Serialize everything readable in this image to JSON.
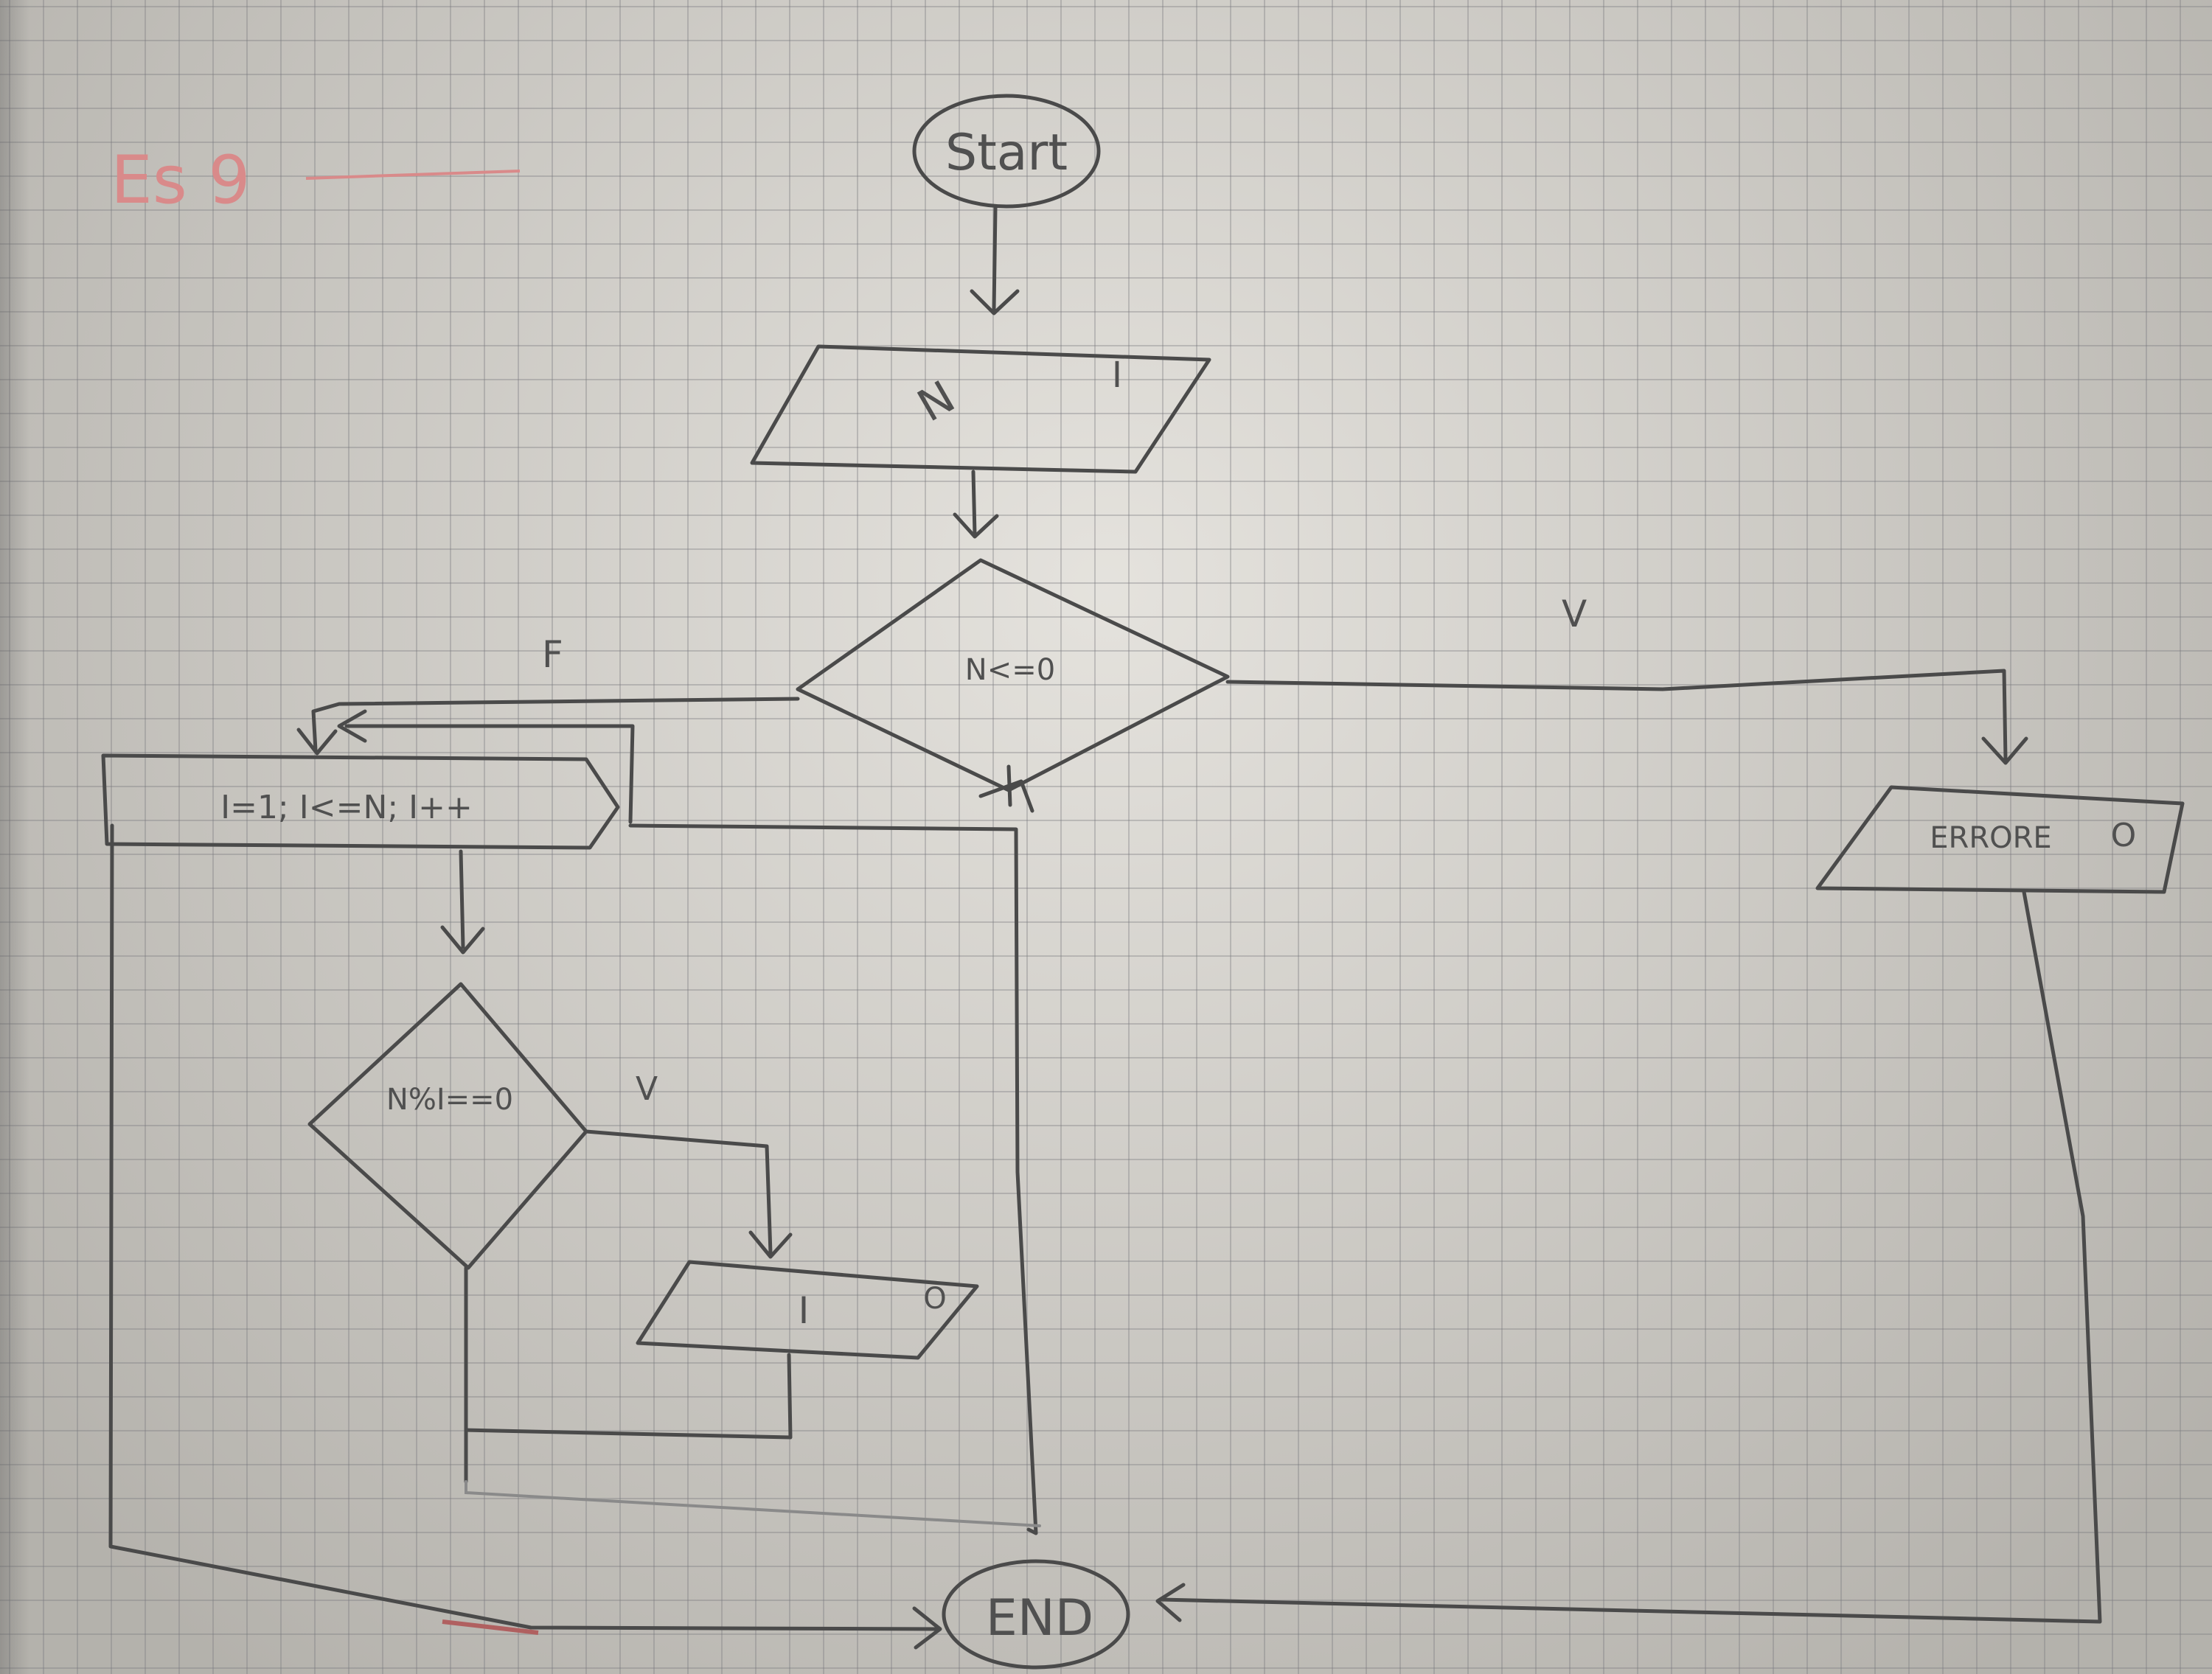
{
  "header": {
    "title": "Es 9"
  },
  "nodes": {
    "start": "Start",
    "input": "N",
    "input_mark": "I",
    "cond_main": "N<=0",
    "loop": "I=1; I<=N; I++",
    "cond_mod": "N%I==0",
    "output_i": "I",
    "output_i_mark": "O",
    "error": "ERRORE",
    "error_mark": "O",
    "end": "END"
  },
  "branch_labels": {
    "false_main": "F",
    "true_main": "V",
    "true_mod": "V"
  }
}
